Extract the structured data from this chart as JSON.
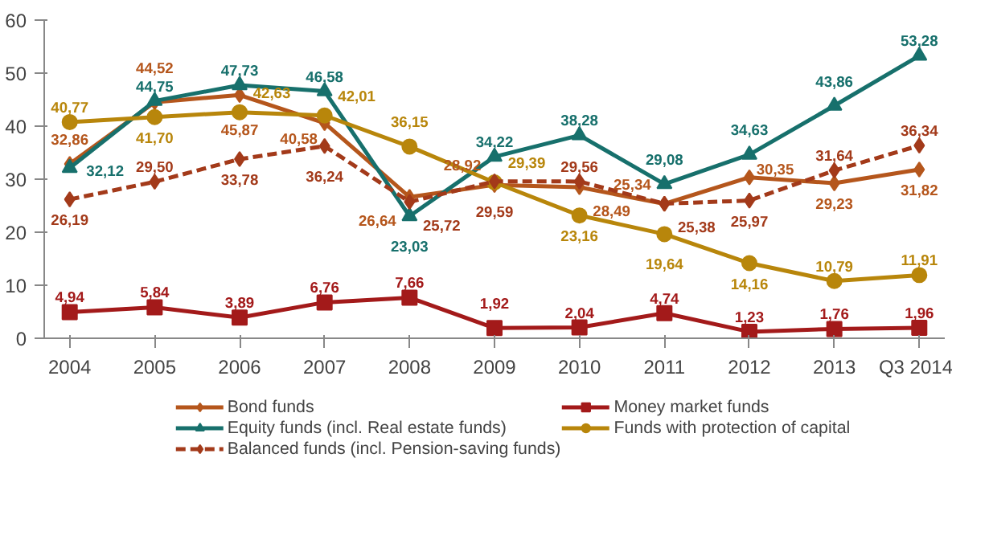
{
  "chart_data": {
    "type": "line",
    "categories": [
      "2004",
      "2005",
      "2006",
      "2007",
      "2008",
      "2009",
      "2010",
      "2011",
      "2012",
      "2013",
      "Q3 2014"
    ],
    "ylim": [
      0,
      60
    ],
    "yticks": [
      0,
      10,
      20,
      30,
      40,
      50,
      60
    ],
    "grid": false,
    "legend": "bottom",
    "series": [
      {
        "name": "Bond funds",
        "color": "#b5561c",
        "marker": "diamond",
        "values": [
          32.86,
          44.52,
          45.87,
          40.58,
          26.64,
          28.92,
          28.49,
          25.34,
          30.35,
          29.23,
          31.82
        ],
        "value_labels": [
          "32,86",
          "44,52",
          "45,87",
          "40,58",
          "26,64",
          "28,92",
          "28,49",
          "25,34",
          "30,35",
          "29,23",
          "31,82"
        ]
      },
      {
        "name": "Money market funds",
        "color": "#a31a1a",
        "marker": "square",
        "values": [
          4.94,
          5.84,
          3.89,
          6.76,
          7.66,
          1.92,
          2.04,
          4.74,
          1.23,
          1.76,
          1.96
        ],
        "value_labels": [
          "4,94",
          "5,84",
          "3,89",
          "6,76",
          "7,66",
          "1,92",
          "2,04",
          "4,74",
          "1,23",
          "1,76",
          "1,96"
        ]
      },
      {
        "name": "Equity funds (incl. Real estate funds)",
        "color": "#17706c",
        "marker": "triangle",
        "values": [
          32.12,
          44.75,
          47.73,
          46.58,
          23.03,
          34.22,
          38.28,
          29.08,
          34.63,
          43.86,
          53.28
        ],
        "value_labels": [
          "32,12",
          "44,75",
          "47,73",
          "46,58",
          "23,03",
          "34,22",
          "38,28",
          "29,08",
          "34,63",
          "43,86",
          "53,28"
        ]
      },
      {
        "name": "Funds with protection of capital",
        "color": "#b8860b",
        "marker": "circle",
        "values": [
          40.77,
          41.7,
          42.63,
          42.01,
          36.15,
          29.39,
          23.16,
          19.64,
          14.16,
          10.79,
          11.91
        ],
        "value_labels": [
          "40,77",
          "41,70",
          "42,63",
          "42,01",
          "36,15",
          "29,39",
          "23,16",
          "19,64",
          "14,16",
          "10,79",
          "11,91"
        ]
      },
      {
        "name": "Balanced funds (incl. Pension-saving funds)",
        "color": "#a33a1a",
        "marker": "diamond",
        "line_style": "dashed",
        "values": [
          26.19,
          29.5,
          33.78,
          36.24,
          25.72,
          29.59,
          29.56,
          25.38,
          25.97,
          31.64,
          36.34
        ],
        "value_labels": [
          "26,19",
          "29,50",
          "33,78",
          "36,24",
          "25,72",
          "29,59",
          "29,56",
          "25,38",
          "25,97",
          "31,64",
          "36,34"
        ]
      }
    ]
  }
}
